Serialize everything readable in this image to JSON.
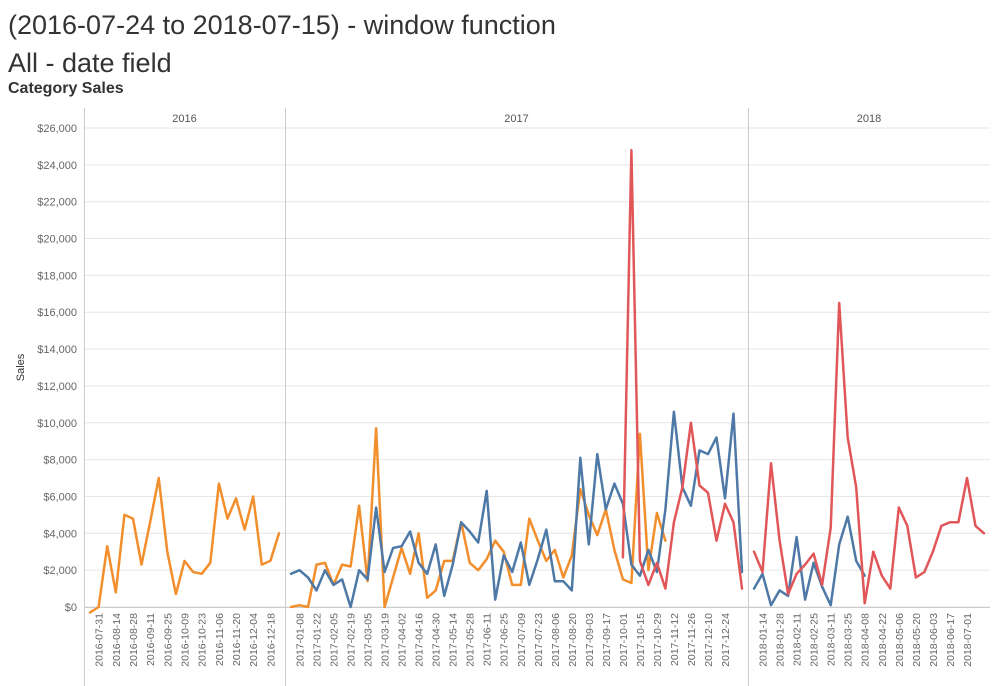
{
  "title": "(2016-07-24 to 2018-07-15) - window function\nAll - date field",
  "subtitle": "Category Sales",
  "colors": {
    "orange": "#F28E2B",
    "blue": "#4E79A7",
    "red": "#E15759",
    "grid": "#e6e6e6",
    "divider": "#cccccc"
  },
  "chart_data": {
    "type": "line",
    "ylabel": "Sales",
    "ylim": [
      0,
      26000
    ],
    "yticks": [
      0,
      2000,
      4000,
      6000,
      8000,
      10000,
      12000,
      14000,
      16000,
      18000,
      20000,
      22000,
      24000,
      26000
    ],
    "ytick_labels": [
      "$0",
      "$2,000",
      "$4,000",
      "$6,000",
      "$8,000",
      "$10,000",
      "$12,000",
      "$14,000",
      "$16,000",
      "$18,000",
      "$20,000",
      "$22,000",
      "$24,000",
      "$26,000"
    ],
    "panels": [
      {
        "label": "2016",
        "x_labels": [
          "2016-07-31",
          "2016-08-14",
          "2016-08-28",
          "2016-09-11",
          "2016-09-25",
          "2016-10-09",
          "2016-10-23",
          "2016-11-06",
          "2016-11-20",
          "2016-12-04",
          "2016-12-18"
        ],
        "series": [
          {
            "color": "orange",
            "values": [
              -300,
              0,
              3300,
              800,
              5000,
              4800,
              2300,
              4600,
              7000,
              3000,
              700,
              2500,
              1900,
              1800,
              2400,
              6700,
              4800,
              5900,
              4200,
              6000,
              2300,
              2500,
              4000
            ]
          }
        ]
      },
      {
        "label": "2017",
        "x_labels": [
          "2017-01-08",
          "2017-01-22",
          "2017-02-05",
          "2017-02-19",
          "2017-03-05",
          "2017-03-19",
          "2017-04-02",
          "2017-04-16",
          "2017-04-30",
          "2017-05-14",
          "2017-05-28",
          "2017-06-11",
          "2017-06-25",
          "2017-07-09",
          "2017-07-23",
          "2017-08-06",
          "2017-08-20",
          "2017-09-03",
          "2017-09-17",
          "2017-10-01",
          "2017-10-15",
          "2017-10-29",
          "2017-11-12",
          "2017-11-26",
          "2017-12-10",
          "2017-12-24"
        ],
        "series": [
          {
            "color": "orange",
            "values": [
              0,
              100,
              0,
              2300,
              2400,
              1200,
              2300,
              2200,
              5500,
              1400,
              9700,
              0,
              1600,
              3200,
              1800,
              4000,
              500,
              900,
              2500,
              2500,
              4600,
              2400,
              2000,
              2600,
              3600,
              3000,
              1200,
              1200,
              4800,
              3600,
              2500,
              3100,
              1600,
              2800,
              6400,
              5000,
              3900,
              5300,
              3100,
              1500,
              1300,
              9400,
              2000,
              5100,
              3600
            ]
          },
          {
            "color": "blue",
            "values": [
              1800,
              2000,
              1600,
              900,
              2000,
              1200,
              1500,
              0,
              2000,
              1500,
              5400,
              1900,
              3200,
              3300,
              4100,
              2400,
              1800,
              3400,
              600,
              2300,
              4600,
              4100,
              3500,
              6300,
              400,
              2800,
              1900,
              3500,
              1200,
              2600,
              4200,
              1400,
              1400,
              900,
              8100,
              3400,
              8300,
              5300,
              6700,
              5600,
              2300,
              1700,
              3100,
              1900,
              5300,
              10600,
              6500,
              5500,
              8500,
              8300,
              9200,
              5900,
              10500,
              1900
            ]
          },
          {
            "color": "red",
            "start": 39,
            "values": [
              2700,
              24800,
              2500,
              1200,
              2400,
              1000,
              4600,
              6500,
              10000,
              6600,
              6200,
              3600,
              5600,
              4600,
              1000
            ]
          }
        ]
      },
      {
        "label": "2018",
        "x_labels": [
          "2018-01-14",
          "2018-01-28",
          "2018-02-11",
          "2018-02-25",
          "2018-03-11",
          "2018-03-25",
          "2018-04-08",
          "2018-04-22",
          "2018-05-06",
          "2018-05-20",
          "2018-06-03",
          "2018-06-17",
          "2018-07-01"
        ],
        "series": [
          {
            "color": "blue",
            "values": [
              1000,
              1800,
              100,
              900,
              600,
              3800,
              400,
              2400,
              1100,
              100,
              3400,
              4900,
              2500,
              1700
            ]
          },
          {
            "color": "red",
            "values": [
              3000,
              1900,
              7800,
              3600,
              700,
              1800,
              2300,
              2900,
              1200,
              4300,
              16500,
              9200,
              6500,
              200,
              3000,
              1700,
              1000,
              5400,
              4400,
              1600,
              1900,
              3000,
              4400,
              4600,
              4600,
              7000,
              4400,
              4000
            ]
          }
        ]
      }
    ]
  }
}
